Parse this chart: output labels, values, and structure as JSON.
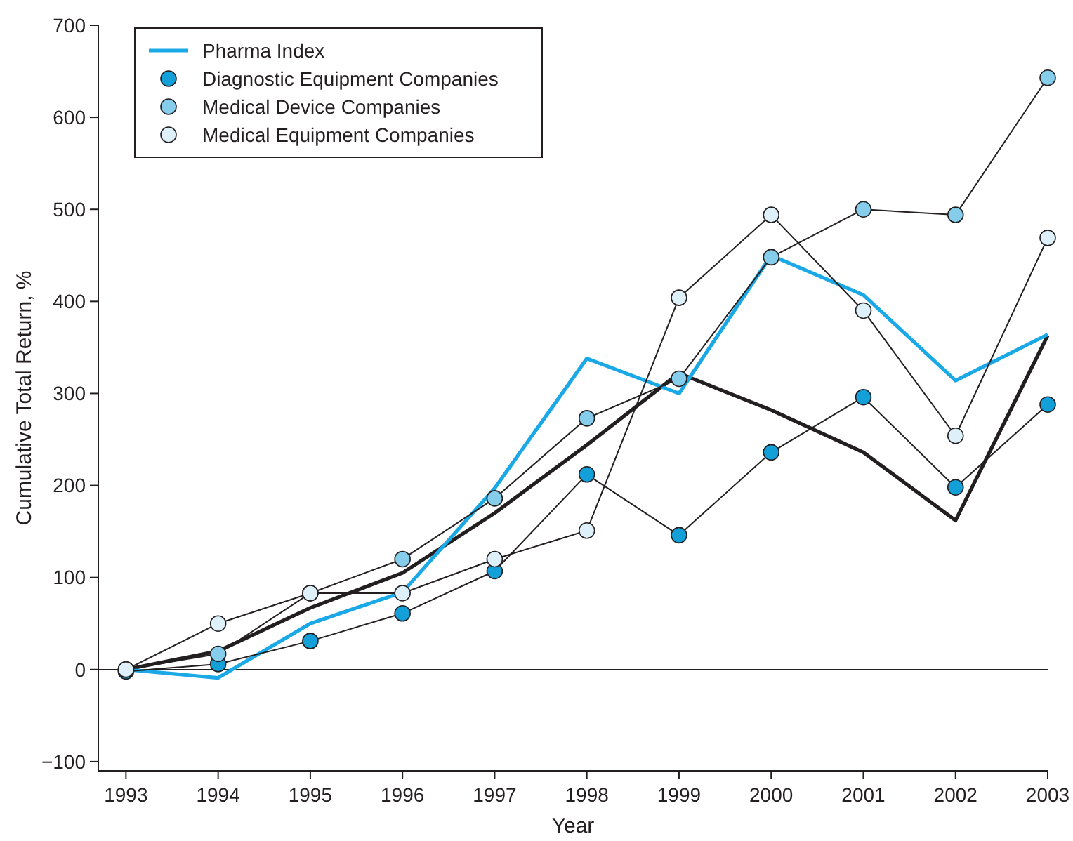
{
  "chart_data": {
    "type": "line",
    "xlabel": "Year",
    "ylabel": "Cumulative Total Return, %",
    "x": [
      1993,
      1994,
      1995,
      1996,
      1997,
      1998,
      1999,
      2000,
      2001,
      2002,
      2003
    ],
    "xlim": [
      1992.7,
      2003
    ],
    "xticks": [
      1993,
      1994,
      1995,
      1996,
      1997,
      1998,
      1999,
      2000,
      2001,
      2002,
      2003
    ],
    "ylim": [
      -110,
      700
    ],
    "yticks": [
      {
        "value": -100,
        "label": "−100"
      },
      0,
      100,
      200,
      300,
      400,
      500,
      600,
      700
    ],
    "legend": "top left",
    "grid": false,
    "ref_lines": [
      {
        "axis": "y",
        "value": 0
      }
    ],
    "series": [
      {
        "color": "#231f20",
        "marker": "none",
        "values": [
          0,
          20,
          67,
          105,
          170,
          244,
          322,
          282,
          236,
          162,
          363
        ]
      },
      {
        "name": "Pharma Index",
        "color": "#1aa9e6",
        "marker": "none",
        "values": [
          0,
          -9,
          50,
          84,
          197,
          338,
          300,
          450,
          407,
          314,
          364
        ]
      },
      {
        "name": "Diagnostic Equipment Companies",
        "color": "#139fd8",
        "marker": "circle",
        "values": [
          -2,
          6,
          31,
          61,
          107,
          212,
          146,
          236,
          296,
          198,
          288
        ]
      },
      {
        "name": "Medical Device Companies",
        "color": "#86cdec",
        "marker": "circle",
        "values": [
          0,
          17,
          83,
          120,
          186,
          273,
          316,
          448,
          500,
          494,
          643
        ]
      },
      {
        "name": "Medical Equipment Companies",
        "color": "#def1fa",
        "marker": "circle",
        "values": [
          0,
          50,
          83,
          83,
          120,
          151,
          404,
          494,
          390,
          254,
          469
        ]
      }
    ]
  }
}
